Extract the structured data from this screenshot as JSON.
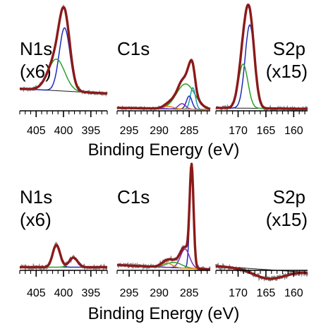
{
  "xlabel": "Binding Energy (eV)",
  "colors": {
    "raw": "#8a8a8a",
    "envelope": "#8b1a1a",
    "background": "#1a1a1a",
    "blue": "#1f2bb8",
    "green": "#2ca02c",
    "purple": "#7b2cbf",
    "orange": "#e08a1a",
    "teal": "#1a9bb0",
    "axis": "#000000"
  },
  "chart_data": [
    {
      "type": "line",
      "row": "top",
      "panel": "N1s",
      "label": "N1s",
      "multiplier": "(x6)",
      "label_position": "top-left",
      "xlim": [
        408,
        392
      ],
      "reversed_x": true,
      "ticks": [
        405,
        400,
        395
      ],
      "tick_labels": [
        "405",
        "400",
        "395"
      ],
      "baseline": {
        "left": 0.28,
        "right": 0.22
      },
      "components": [
        {
          "color": "blue",
          "center": 399.8,
          "height": 0.8,
          "fwhm": 2.3
        },
        {
          "color": "green",
          "center": 401.3,
          "height": 0.4,
          "fwhm": 3.6
        }
      ]
    },
    {
      "type": "line",
      "row": "top",
      "panel": "C1s",
      "label": "C1s",
      "multiplier": "",
      "label_position": "top-left",
      "xlim": [
        297,
        281.5
      ],
      "reversed_x": true,
      "ticks": [
        295,
        290,
        285
      ],
      "tick_labels": [
        "295",
        "290",
        "285"
      ],
      "baseline": {
        "left": 0.05,
        "right": 0.02
      },
      "components": [
        {
          "color": "green",
          "center": 285.6,
          "height": 0.42,
          "fwhm": 3.6
        },
        {
          "color": "teal",
          "center": 284.4,
          "height": 0.36,
          "fwhm": 1.0
        },
        {
          "color": "blue",
          "center": 285.0,
          "height": 0.22,
          "fwhm": 1.1
        },
        {
          "color": "purple",
          "center": 286.2,
          "height": 0.09,
          "fwhm": 1.4
        },
        {
          "color": "orange",
          "center": 288.5,
          "height": 0.04,
          "fwhm": 2.0
        }
      ]
    },
    {
      "type": "line",
      "row": "top",
      "panel": "S2p",
      "label": "S2p",
      "multiplier": "(x15)",
      "label_position": "top-right",
      "xlim": [
        174,
        157.5
      ],
      "reversed_x": true,
      "ticks": [
        170,
        165,
        160
      ],
      "tick_labels": [
        "170",
        "165",
        "160"
      ],
      "baseline": {
        "left": 0.03,
        "right": 0.02
      },
      "components": [
        {
          "color": "blue",
          "center": 167.9,
          "height": 0.85,
          "fwhm": 2.0
        },
        {
          "color": "green",
          "center": 169.1,
          "height": 0.45,
          "fwhm": 2.0
        }
      ]
    },
    {
      "type": "line",
      "row": "bottom",
      "panel": "N1s",
      "label": "N1s",
      "multiplier": "(x6)",
      "label_position": "top-left",
      "xlim": [
        408,
        392
      ],
      "reversed_x": true,
      "ticks": [
        405,
        400,
        395
      ],
      "tick_labels": [
        "405",
        "400",
        "395"
      ],
      "baseline": {
        "left": 0.03,
        "right": 0.03
      },
      "components": [
        {
          "color": "blue",
          "center": 401.3,
          "height": 0.21,
          "fwhm": 1.6
        },
        {
          "color": "green",
          "center": 398.2,
          "height": 0.09,
          "fwhm": 1.8
        }
      ]
    },
    {
      "type": "line",
      "row": "bottom",
      "panel": "C1s",
      "label": "C1s",
      "multiplier": "",
      "label_position": "top-left",
      "xlim": [
        297,
        281.5
      ],
      "reversed_x": true,
      "ticks": [
        295,
        290,
        285
      ],
      "tick_labels": [
        "295",
        "290",
        "285"
      ],
      "baseline": {
        "left": 0.05,
        "right": 0.01
      },
      "components": [
        {
          "color": "blue",
          "center": 284.6,
          "height": 0.92,
          "fwhm": 0.75
        },
        {
          "color": "purple",
          "center": 285.7,
          "height": 0.18,
          "fwhm": 1.8
        },
        {
          "color": "green",
          "center": 287.5,
          "height": 0.05,
          "fwhm": 3.0
        },
        {
          "color": "orange",
          "center": 288.7,
          "height": 0.04,
          "fwhm": 2.0
        }
      ]
    },
    {
      "type": "line",
      "row": "bottom",
      "panel": "S2p",
      "label": "S2p",
      "multiplier": "(x15)",
      "label_position": "top-right",
      "xlim": [
        174,
        157.5
      ],
      "reversed_x": true,
      "ticks": [
        170,
        165,
        160
      ],
      "tick_labels": [
        "170",
        "165",
        "160"
      ],
      "baseline": {
        "left": 0.2,
        "right": 0.15
      },
      "envelope_dip": {
        "center": 164.5,
        "depth": 0.07,
        "width": 5.5
      },
      "components": []
    }
  ]
}
